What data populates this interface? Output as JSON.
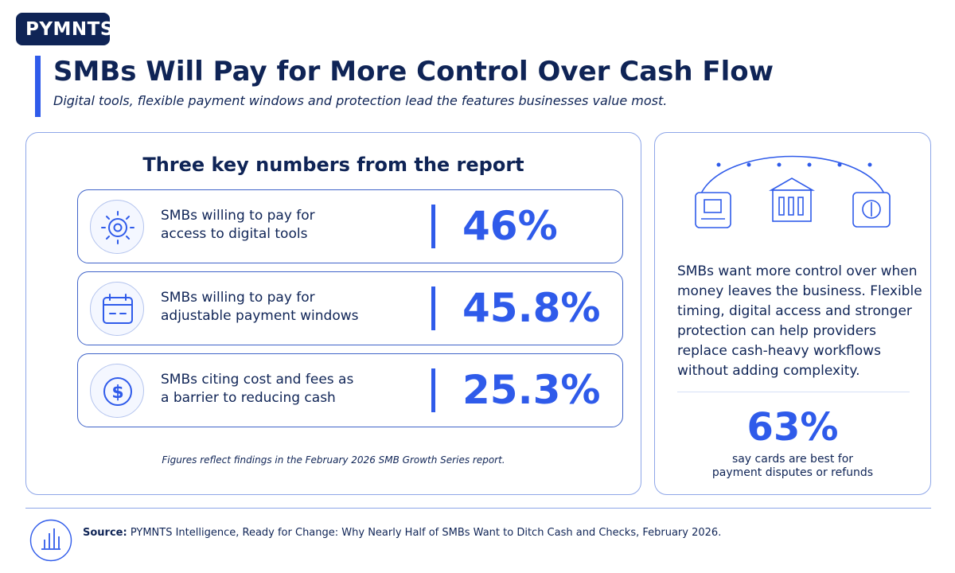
{
  "brand": {
    "logo_text": "PYMNTS"
  },
  "header": {
    "title": "SMBs Will Pay for More Control Over Cash Flow",
    "subtitle": "Digital tools, flexible payment windows and protection lead the features businesses value most."
  },
  "key_numbers": {
    "heading": "Three key numbers from the report",
    "items": [
      {
        "icon": "gear-icon",
        "label_line1": "SMBs willing to pay for",
        "label_line2": "access to digital tools",
        "value": "46%"
      },
      {
        "icon": "calendar-icon",
        "label_line1": "SMBs willing to pay for",
        "label_line2": "adjustable payment windows",
        "value": "45.8%"
      },
      {
        "icon": "dollar-icon",
        "label_line1": "SMBs citing cost and fees as",
        "label_line2": "a barrier to reducing cash",
        "value": "25.3%"
      }
    ],
    "footnote": "Figures reflect findings in the February 2026 SMB Growth Series report."
  },
  "sidebar": {
    "illustration_icons": [
      "laptop-icon",
      "bank-icon",
      "card-icon"
    ],
    "text": "SMBs want more control over when money leaves the business. Flexible timing, digital access and stronger protection can help providers replace cash-heavy workflows without adding complexity.",
    "stat_value": "63%",
    "stat_caption_line1": "say cards are best for",
    "stat_caption_line2": "payment disputes or refunds"
  },
  "footer": {
    "source_label": "Source:",
    "source_text": "PYMNTS Intelligence, Ready for Change: Why Nearly Half of SMBs Want to Ditch Cash and Checks, February 2026."
  },
  "colors": {
    "navy": "#0f2456",
    "accent_blue": "#2f5bea",
    "border": "#8ea6e8"
  }
}
